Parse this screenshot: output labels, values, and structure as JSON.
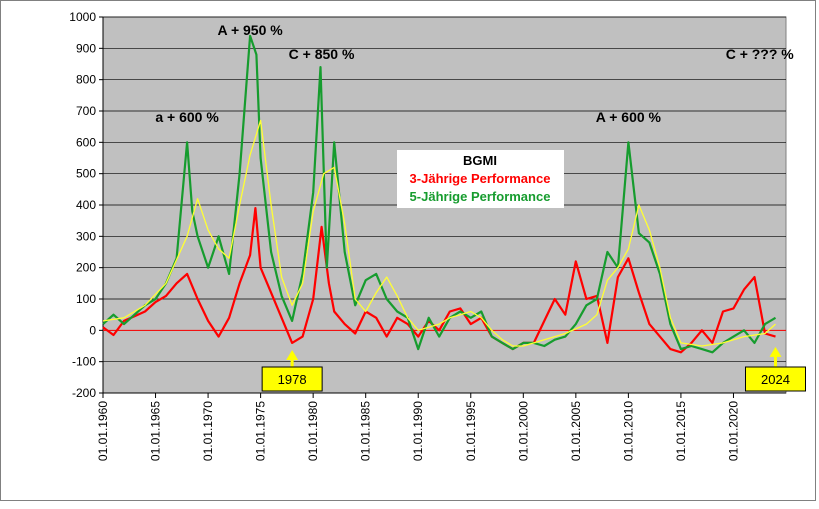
{
  "chart_data": {
    "type": "line",
    "title": "BGMI",
    "ylim": [
      -200,
      1000
    ],
    "yticks": [
      "1000",
      "900",
      "800",
      "700",
      "600",
      "500",
      "400",
      "300",
      "200",
      "100",
      "0",
      "-100",
      "-200"
    ],
    "xticks": [
      "01.01.1960",
      "01.01.1965",
      "01.01.1970",
      "01.01.1975",
      "01.01.1980",
      "01.01.1985",
      "01.01.1990",
      "01.01.1995",
      "01.01.2000",
      "01.01.2005",
      "01.01.2010",
      "01.01.2015",
      "01.01.2020"
    ],
    "xlim": [
      1960,
      2025
    ],
    "grid": true,
    "legend_placement": "center",
    "colors": {
      "plot_background": "#c0c0c0",
      "red_series": "#ff0000",
      "green_series": "#169c2e",
      "yellow_series": "#ffff33",
      "baseline": "#ff0000",
      "callout_box": "#ffff00"
    },
    "series": [
      {
        "name": "3-Jährige Performance",
        "color": "#ff0000",
        "points": [
          [
            1960,
            10
          ],
          [
            1961,
            -15
          ],
          [
            1962,
            30
          ],
          [
            1963,
            45
          ],
          [
            1964,
            60
          ],
          [
            1965,
            90
          ],
          [
            1966,
            110
          ],
          [
            1967,
            150
          ],
          [
            1968,
            180
          ],
          [
            1969,
            100
          ],
          [
            1970,
            30
          ],
          [
            1971,
            -20
          ],
          [
            1972,
            40
          ],
          [
            1973,
            150
          ],
          [
            1974,
            240
          ],
          [
            1974.5,
            390
          ],
          [
            1975,
            200
          ],
          [
            1976,
            120
          ],
          [
            1977,
            40
          ],
          [
            1978,
            -40
          ],
          [
            1979,
            -20
          ],
          [
            1980,
            100
          ],
          [
            1980.8,
            330
          ],
          [
            1981.5,
            150
          ],
          [
            1982,
            60
          ],
          [
            1983,
            20
          ],
          [
            1984,
            -10
          ],
          [
            1985,
            60
          ],
          [
            1986,
            40
          ],
          [
            1987,
            -20
          ],
          [
            1988,
            40
          ],
          [
            1989,
            20
          ],
          [
            1990,
            -20
          ],
          [
            1991,
            30
          ],
          [
            1992,
            0
          ],
          [
            1993,
            60
          ],
          [
            1994,
            70
          ],
          [
            1995,
            20
          ],
          [
            1996,
            40
          ],
          [
            1997,
            -20
          ],
          [
            1998,
            -40
          ],
          [
            1999,
            -60
          ],
          [
            2000,
            -40
          ],
          [
            2001,
            -40
          ],
          [
            2002,
            30
          ],
          [
            2003,
            100
          ],
          [
            2004,
            50
          ],
          [
            2005,
            220
          ],
          [
            2006,
            100
          ],
          [
            2007,
            110
          ],
          [
            2008,
            -40
          ],
          [
            2009,
            170
          ],
          [
            2010,
            230
          ],
          [
            2011,
            120
          ],
          [
            2012,
            20
          ],
          [
            2013,
            -20
          ],
          [
            2014,
            -60
          ],
          [
            2015,
            -70
          ],
          [
            2016,
            -40
          ],
          [
            2017,
            0
          ],
          [
            2018,
            -40
          ],
          [
            2019,
            60
          ],
          [
            2020,
            70
          ],
          [
            2021,
            130
          ],
          [
            2022,
            170
          ],
          [
            2023,
            -10
          ],
          [
            2024,
            -20
          ]
        ]
      },
      {
        "name": "5-Jährige Performance",
        "color": "#169c2e",
        "points": [
          [
            1960,
            20
          ],
          [
            1961,
            50
          ],
          [
            1962,
            20
          ],
          [
            1963,
            50
          ],
          [
            1964,
            80
          ],
          [
            1965,
            100
          ],
          [
            1966,
            150
          ],
          [
            1967,
            230
          ],
          [
            1968,
            600
          ],
          [
            1968.5,
            380
          ],
          [
            1969,
            300
          ],
          [
            1970,
            200
          ],
          [
            1971,
            300
          ],
          [
            1972,
            180
          ],
          [
            1973,
            500
          ],
          [
            1974,
            940
          ],
          [
            1974.6,
            880
          ],
          [
            1975,
            550
          ],
          [
            1976,
            250
          ],
          [
            1977,
            110
          ],
          [
            1978,
            30
          ],
          [
            1979,
            180
          ],
          [
            1980,
            440
          ],
          [
            1980.7,
            840
          ],
          [
            1981.3,
            200
          ],
          [
            1982,
            600
          ],
          [
            1983,
            250
          ],
          [
            1984,
            80
          ],
          [
            1985,
            160
          ],
          [
            1986,
            180
          ],
          [
            1987,
            100
          ],
          [
            1988,
            60
          ],
          [
            1989,
            40
          ],
          [
            1990,
            -60
          ],
          [
            1991,
            40
          ],
          [
            1992,
            -20
          ],
          [
            1993,
            40
          ],
          [
            1994,
            60
          ],
          [
            1995,
            40
          ],
          [
            1996,
            60
          ],
          [
            1997,
            -20
          ],
          [
            1998,
            -40
          ],
          [
            1999,
            -60
          ],
          [
            2000,
            -40
          ],
          [
            2001,
            -40
          ],
          [
            2002,
            -50
          ],
          [
            2003,
            -30
          ],
          [
            2004,
            -20
          ],
          [
            2005,
            20
          ],
          [
            2006,
            80
          ],
          [
            2007,
            100
          ],
          [
            2008,
            250
          ],
          [
            2009,
            200
          ],
          [
            2010,
            600
          ],
          [
            2011,
            310
          ],
          [
            2012,
            280
          ],
          [
            2013,
            180
          ],
          [
            2014,
            20
          ],
          [
            2015,
            -60
          ],
          [
            2016,
            -50
          ],
          [
            2017,
            -60
          ],
          [
            2018,
            -70
          ],
          [
            2019,
            -40
          ],
          [
            2020,
            -20
          ],
          [
            2021,
            0
          ],
          [
            2022,
            -40
          ],
          [
            2023,
            20
          ],
          [
            2024,
            40
          ]
        ]
      },
      {
        "name": "",
        "color": "#ffff33",
        "points": [
          [
            1960,
            30
          ],
          [
            1962,
            40
          ],
          [
            1964,
            80
          ],
          [
            1966,
            150
          ],
          [
            1968,
            300
          ],
          [
            1969,
            420
          ],
          [
            1970,
            320
          ],
          [
            1971,
            260
          ],
          [
            1972,
            230
          ],
          [
            1973,
            400
          ],
          [
            1974,
            560
          ],
          [
            1975,
            670
          ],
          [
            1976,
            400
          ],
          [
            1977,
            170
          ],
          [
            1978,
            80
          ],
          [
            1979,
            150
          ],
          [
            1980,
            380
          ],
          [
            1981,
            500
          ],
          [
            1982,
            520
          ],
          [
            1983,
            340
          ],
          [
            1984,
            100
          ],
          [
            1985,
            60
          ],
          [
            1986,
            120
          ],
          [
            1987,
            170
          ],
          [
            1988,
            110
          ],
          [
            1989,
            40
          ],
          [
            1990,
            0
          ],
          [
            1991,
            10
          ],
          [
            1992,
            20
          ],
          [
            1993,
            40
          ],
          [
            1994,
            50
          ],
          [
            1995,
            60
          ],
          [
            1996,
            40
          ],
          [
            1997,
            0
          ],
          [
            1998,
            -30
          ],
          [
            1999,
            -50
          ],
          [
            2000,
            -50
          ],
          [
            2002,
            -30
          ],
          [
            2004,
            -10
          ],
          [
            2006,
            20
          ],
          [
            2007,
            50
          ],
          [
            2008,
            160
          ],
          [
            2009,
            200
          ],
          [
            2010,
            260
          ],
          [
            2011,
            400
          ],
          [
            2012,
            320
          ],
          [
            2013,
            200
          ],
          [
            2014,
            40
          ],
          [
            2015,
            -40
          ],
          [
            2017,
            -50
          ],
          [
            2019,
            -40
          ],
          [
            2021,
            -20
          ],
          [
            2023,
            -10
          ],
          [
            2024,
            20
          ]
        ]
      }
    ],
    "annotations": [
      {
        "text": "a + 600 %",
        "x": 1968,
        "y": 640,
        "color": "#000000"
      },
      {
        "text": "A + 950 %",
        "x": 1974,
        "y": 950,
        "color": "#000000"
      },
      {
        "text": "C + 850 %",
        "x": 1980.8,
        "y": 840,
        "color": "#000000"
      },
      {
        "text": "A + 600 %",
        "x": 2010,
        "y": 640,
        "color": "#000000"
      },
      {
        "text": "C + ??? %",
        "x": 2022.5,
        "y": 840,
        "color": "#000000"
      }
    ],
    "callouts": [
      {
        "text": "1978",
        "x": 1978,
        "y": -50
      },
      {
        "text": "2024",
        "x": 2024,
        "y": -40
      }
    ],
    "legend": {
      "title": "BGMI",
      "items": [
        {
          "text": "3-Jährige Performance",
          "color": "#ff0000"
        },
        {
          "text": "5-Jährige Performance",
          "color": "#169c2e"
        }
      ]
    }
  }
}
